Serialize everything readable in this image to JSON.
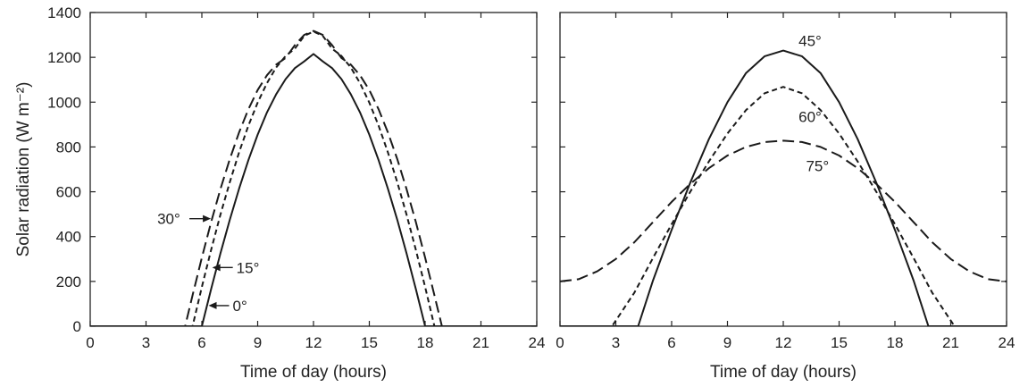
{
  "chart_data": [
    {
      "type": "line",
      "title": "",
      "xlabel": "Time of day (hours)",
      "ylabel": "Solar radiation (W m⁻²)",
      "xlim": [
        0,
        24
      ],
      "ylim": [
        0,
        1400
      ],
      "xticks": [
        "0",
        "3",
        "6",
        "9",
        "12",
        "15",
        "18",
        "21",
        "24"
      ],
      "yticks": [
        "0",
        "200",
        "400",
        "600",
        "800",
        "1000",
        "1200",
        "1400"
      ],
      "grid": false,
      "series": [
        {
          "name": "0°",
          "style": "solid",
          "x": [
            0,
            6.0,
            6.5,
            7,
            7.5,
            8,
            8.5,
            9,
            9.5,
            10,
            10.5,
            11,
            11.5,
            12,
            12.5,
            13,
            13.5,
            14,
            14.5,
            15,
            15.5,
            16,
            16.5,
            17,
            17.5,
            18.0,
            24
          ],
          "y": [
            0,
            0,
            166,
            325,
            475,
            614,
            741,
            855,
            954,
            1036,
            1103,
            1152,
            1182,
            1215,
            1182,
            1152,
            1103,
            1036,
            954,
            855,
            741,
            614,
            475,
            325,
            166,
            0,
            0
          ]
        },
        {
          "name": "15°",
          "style": "short-dash",
          "x": [
            0,
            5.5,
            6,
            6.5,
            7,
            7.5,
            8,
            8.5,
            9,
            9.5,
            10,
            10.5,
            11,
            11.5,
            12,
            12.5,
            13,
            13.5,
            14,
            14.5,
            15,
            15.5,
            16,
            16.5,
            17,
            17.5,
            18,
            18.5,
            24
          ],
          "y": [
            0,
            0,
            175,
            341,
            498,
            643,
            776,
            895,
            998,
            1085,
            1155,
            1206,
            1239,
            1296,
            1315,
            1296,
            1239,
            1206,
            1155,
            1085,
            998,
            895,
            776,
            643,
            498,
            341,
            175,
            0,
            0
          ]
        },
        {
          "name": "30°",
          "style": "long-dash",
          "x": [
            0,
            5.1,
            5.5,
            6,
            6.5,
            7,
            7.5,
            8,
            8.5,
            9,
            9.5,
            10,
            10.5,
            11,
            11.5,
            12,
            12.5,
            13,
            13.5,
            14,
            14.5,
            15,
            15.5,
            16,
            16.5,
            17,
            17.5,
            18,
            18.5,
            18.9,
            24
          ],
          "y": [
            0,
            0,
            138,
            306,
            465,
            612,
            746,
            865,
            968,
            1054,
            1120,
            1168,
            1197,
            1255,
            1300,
            1318,
            1300,
            1255,
            1197,
            1168,
            1120,
            1054,
            968,
            865,
            746,
            612,
            465,
            306,
            138,
            0,
            0
          ]
        }
      ],
      "annotations": [
        {
          "text": "30°",
          "x": 6.1,
          "y": 480
        },
        {
          "text": "15°",
          "x": 6.8,
          "y": 262
        },
        {
          "text": "0°",
          "x": 6.6,
          "y": 92
        }
      ]
    },
    {
      "type": "line",
      "title": "",
      "xlabel": "Time of day (hours)",
      "ylabel": "",
      "xlim": [
        0,
        24
      ],
      "ylim": [
        0,
        1400
      ],
      "xticks": [
        "0",
        "3",
        "6",
        "9",
        "12",
        "15",
        "18",
        "21",
        "24"
      ],
      "yticks": [],
      "grid": false,
      "series": [
        {
          "name": "45°",
          "style": "solid",
          "x": [
            0,
            4.2,
            5,
            6,
            7,
            8,
            9,
            10,
            11,
            12,
            13,
            14,
            15,
            16,
            17,
            18,
            19,
            19.8,
            24
          ],
          "y": [
            0,
            0,
            205,
            430,
            640,
            835,
            1000,
            1130,
            1205,
            1230,
            1205,
            1130,
            1000,
            835,
            640,
            430,
            205,
            0,
            0
          ]
        },
        {
          "name": "60°",
          "style": "short-dash",
          "x": [
            0,
            2.8,
            4,
            5,
            6,
            7,
            8,
            9,
            10,
            11,
            12,
            13,
            14,
            15,
            16,
            17,
            18,
            19,
            20,
            21.2,
            24
          ],
          "y": [
            0,
            0,
            150,
            305,
            455,
            600,
            735,
            860,
            965,
            1040,
            1068,
            1040,
            965,
            860,
            735,
            600,
            455,
            305,
            150,
            0,
            0
          ]
        },
        {
          "name": "75°",
          "style": "long-dash",
          "x": [
            0,
            1,
            2,
            3,
            4,
            5,
            6,
            7,
            8,
            9,
            10,
            11,
            12,
            13,
            14,
            15,
            16,
            17,
            18,
            19,
            20,
            21,
            22,
            23,
            24
          ],
          "y": [
            200,
            210,
            245,
            300,
            375,
            465,
            555,
            635,
            705,
            762,
            800,
            822,
            828,
            822,
            800,
            762,
            705,
            635,
            555,
            465,
            375,
            300,
            245,
            210,
            200
          ]
        }
      ],
      "annotations": [
        {
          "text": "45°",
          "x": 12,
          "y": 1275
        },
        {
          "text": "60°",
          "x": 12,
          "y": 935
        },
        {
          "text": "75°",
          "x": 12.4,
          "y": 715
        }
      ]
    }
  ]
}
